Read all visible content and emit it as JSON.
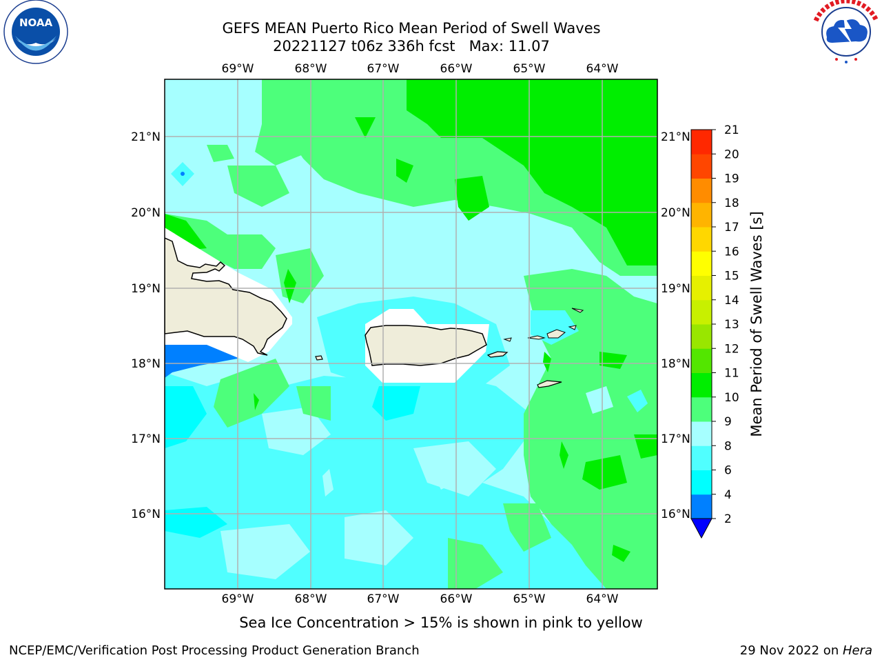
{
  "header": {
    "title_line1": "GEFS MEAN Puerto Rico Mean Period of Swell Waves",
    "title_line2": "20221127 t06z 336h fcst   Max: 11.07"
  },
  "logos": {
    "left": {
      "name": "noaa-logo",
      "text": "NOAA",
      "ring_text": "NATIONAL OCEANIC AND ATMOSPHERIC ADMINISTRATION · U.S. DEPARTMENT OF COMMERCE"
    },
    "right": {
      "name": "nws-logo",
      "ring_text": "NATIONAL WEATHER SERVICE"
    }
  },
  "map": {
    "lon_labels": [
      "69°W",
      "68°W",
      "67°W",
      "66°W",
      "65°W",
      "64°W"
    ],
    "lat_labels": [
      "21°N",
      "20°N",
      "19°N",
      "18°N",
      "17°N",
      "16°N"
    ],
    "land_color": "#efedda",
    "field_colors": {
      "sea_cyan": "#00ffff",
      "light_cyan": "#50ffff",
      "pale_cyan": "#a6ffff",
      "light_green": "#4dff7b",
      "green": "#00ee00",
      "blue": "#0080ff"
    }
  },
  "colorbar": {
    "label": "Mean Period of Swell Waves [s]",
    "ticks": [
      "2",
      "4",
      "6",
      "8",
      "9",
      "10",
      "11",
      "12",
      "13",
      "14",
      "15",
      "16",
      "17",
      "18",
      "19",
      "20",
      "21"
    ],
    "colors": [
      "#0000ff",
      "#0080ff",
      "#00ffff",
      "#50ffff",
      "#a6ffff",
      "#4dff7b",
      "#00ee00",
      "#53e600",
      "#99e600",
      "#c8f000",
      "#e6f000",
      "#ffff00",
      "#ffd700",
      "#ffb400",
      "#ff8c00",
      "#ff4600",
      "#ff2800",
      "#ff0000"
    ]
  },
  "caption": "Sea Ice Concentration > 15% is shown in pink to yellow",
  "footer": {
    "left": "NCEP/EMC/Verification Post Processing Product Generation Branch",
    "right_date": "29 Nov 2022 on ",
    "right_host": "Hera"
  }
}
